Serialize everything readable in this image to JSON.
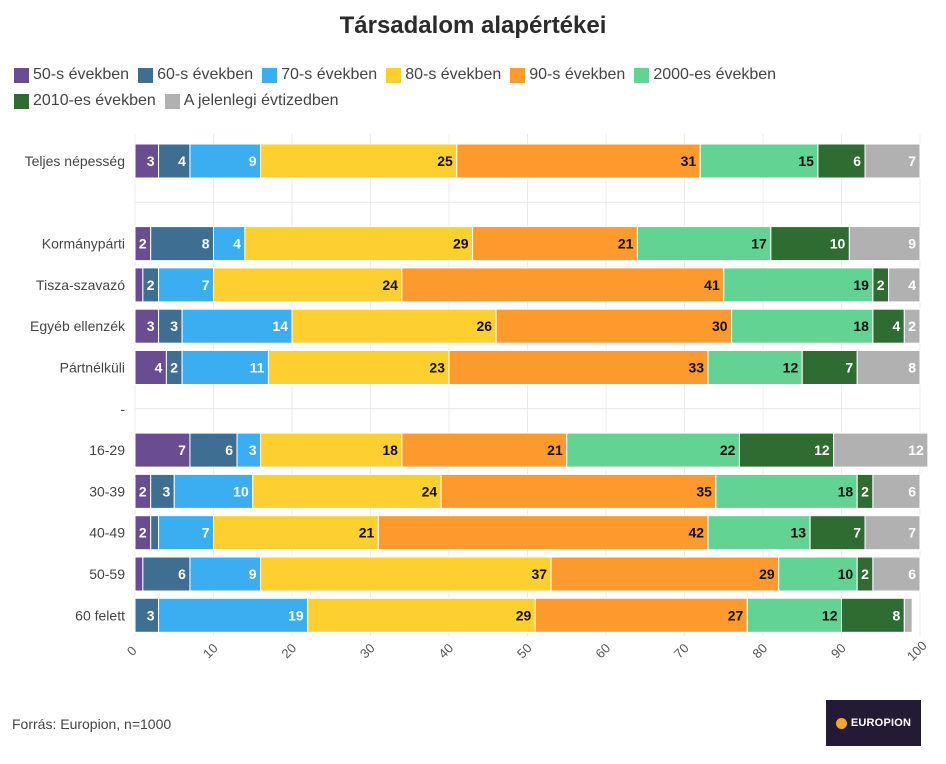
{
  "chart_data": {
    "type": "bar",
    "orientation": "horizontal",
    "stacked": true,
    "title": "Társadalom alapértékei",
    "legend_position": "top-left",
    "xlim": [
      0,
      100
    ],
    "x_ticks": [
      0,
      10,
      20,
      30,
      40,
      50,
      60,
      70,
      80,
      90,
      100
    ],
    "grid": true,
    "categories": [
      "Teljes népesség",
      "",
      "Kormánypárti",
      "Tisza-szavazó",
      "Egyéb ellenzék",
      "Pártnélküli",
      "-",
      "16-29",
      "30-39",
      "40-49",
      "50-59",
      "60 felett"
    ],
    "series": [
      {
        "name": "50-s években",
        "color": "#6a4c93",
        "values": [
          3,
          null,
          2,
          1,
          3,
          4,
          null,
          7,
          2,
          2,
          1,
          0
        ]
      },
      {
        "name": "60-s években",
        "color": "#3e6f93",
        "values": [
          4,
          null,
          8,
          2,
          3,
          2,
          null,
          6,
          3,
          1,
          6,
          3
        ]
      },
      {
        "name": "70-s években",
        "color": "#3aaef0",
        "values": [
          9,
          null,
          4,
          7,
          14,
          11,
          null,
          3,
          10,
          7,
          9,
          19
        ]
      },
      {
        "name": "80-s években",
        "color": "#fdd02f",
        "values": [
          25,
          null,
          29,
          24,
          26,
          23,
          null,
          18,
          24,
          21,
          37,
          29
        ]
      },
      {
        "name": "90-s években",
        "color": "#fd9a2e",
        "values": [
          31,
          null,
          21,
          41,
          30,
          33,
          null,
          21,
          35,
          42,
          29,
          27
        ]
      },
      {
        "name": "2000-es években",
        "color": "#63d394",
        "values": [
          15,
          null,
          17,
          19,
          18,
          12,
          null,
          22,
          18,
          13,
          10,
          12
        ]
      },
      {
        "name": "2010-es években",
        "color": "#2f6c32",
        "values": [
          6,
          null,
          10,
          2,
          4,
          7,
          null,
          12,
          2,
          7,
          2,
          8
        ]
      },
      {
        "name": "A jelenlegi évtizedben",
        "color": "#b1b1b1",
        "values": [
          7,
          null,
          9,
          4,
          2,
          8,
          null,
          12,
          6,
          7,
          6,
          1
        ]
      }
    ],
    "data_labels": [
      [
        "3",
        "4",
        "9",
        "25",
        "31",
        "15",
        "6",
        "7"
      ],
      [],
      [
        "2",
        "8",
        "4",
        "29",
        "21",
        "17",
        "10",
        "9"
      ],
      [
        "",
        "2",
        "7",
        "24",
        "41",
        "19",
        "2",
        "4"
      ],
      [
        "3",
        "3",
        "14",
        "26",
        "30",
        "18",
        "4",
        "2"
      ],
      [
        "4",
        "2",
        "11",
        "23",
        "33",
        "12",
        "7",
        "8"
      ],
      [],
      [
        "7",
        "6",
        "3",
        "18",
        "21",
        "22",
        "12",
        "12"
      ],
      [
        "2",
        "3",
        "10",
        "24",
        "35",
        "18",
        "2",
        "6"
      ],
      [
        "2",
        "",
        "7",
        "21",
        "42",
        "13",
        "7",
        "7"
      ],
      [
        "",
        "6",
        "9",
        "37",
        "29",
        "10",
        "2",
        "6"
      ],
      [
        "",
        "3",
        "19",
        "29",
        "27",
        "12",
        "8",
        ""
      ]
    ]
  },
  "footer": {
    "source": "Forrás: Europion, n=1000",
    "logo_text": "EUROPION"
  }
}
